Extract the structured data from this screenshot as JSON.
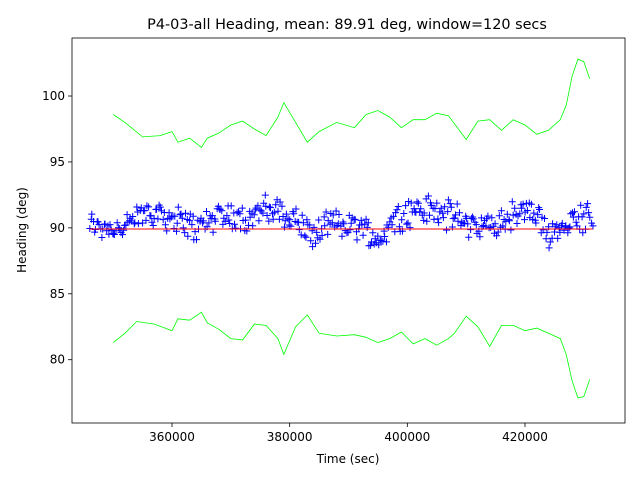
{
  "chart_data": {
    "type": "scatter",
    "title": "P4-03-all Heading, mean: 89.91 deg, window=120 secs",
    "xlabel": "Time (sec)",
    "ylabel": "Heading (deg)",
    "xlim": [
      343000,
      437000
    ],
    "ylim": [
      75.2,
      104.4
    ],
    "x_ticks": [
      360000,
      380000,
      400000,
      420000
    ],
    "x_tick_labels": [
      "360000",
      "380000",
      "400000",
      "420000"
    ],
    "y_ticks": [
      80,
      85,
      90,
      95,
      100
    ],
    "y_tick_labels": [
      "80",
      "85",
      "90",
      "95",
      "100"
    ],
    "grid": false,
    "colors": {
      "points": "#0000ff",
      "mean": "#ff0000",
      "bounds": "#00ff00"
    },
    "series": [
      {
        "role": "points",
        "marker": "+",
        "x_range": [
          346000,
          431500
        ],
        "count": 1000,
        "mean": 89.91,
        "spread_min": 87.6,
        "spread_max": 93.0
      },
      {
        "role": "mean",
        "x": [
          346000,
          431500
        ],
        "values": [
          89.91,
          89.91
        ]
      },
      {
        "role": "upper-bound",
        "x": [
          350000,
          352000,
          355000,
          358000,
          360000,
          361000,
          363000,
          365000,
          366000,
          368000,
          370000,
          372000,
          374000,
          376000,
          378000,
          379000,
          381000,
          383000,
          385000,
          388000,
          391000,
          393000,
          395000,
          397000,
          399000,
          401000,
          403000,
          405000,
          407000,
          408000,
          410000,
          412000,
          414000,
          416000,
          418000,
          420000,
          422000,
          424000,
          426000,
          427000,
          428000,
          429000,
          430000,
          431000
        ],
        "values": [
          98.6,
          98.0,
          96.9,
          97.0,
          97.3,
          96.5,
          96.8,
          96.1,
          96.8,
          97.2,
          97.8,
          98.1,
          97.5,
          97.0,
          98.4,
          99.5,
          98.0,
          96.5,
          97.3,
          98.0,
          97.6,
          98.6,
          98.9,
          98.4,
          97.6,
          98.2,
          98.2,
          98.7,
          98.5,
          97.9,
          96.7,
          98.1,
          98.2,
          97.4,
          98.2,
          97.8,
          97.1,
          97.4,
          98.2,
          99.3,
          101.5,
          102.8,
          102.6,
          101.3
        ]
      },
      {
        "role": "lower-bound",
        "x": [
          350000,
          352000,
          354000,
          357000,
          360000,
          361000,
          363000,
          365000,
          366000,
          368000,
          370000,
          372000,
          374000,
          376000,
          378000,
          379000,
          381000,
          383000,
          385000,
          388000,
          391000,
          393000,
          395000,
          397000,
          399000,
          401000,
          403000,
          405000,
          407000,
          408000,
          410000,
          412000,
          414000,
          416000,
          418000,
          420000,
          422000,
          424000,
          426000,
          427000,
          428000,
          429000,
          430000,
          431000
        ],
        "values": [
          81.3,
          82.0,
          82.9,
          82.7,
          82.2,
          83.1,
          83.0,
          83.6,
          82.8,
          82.3,
          81.6,
          81.5,
          82.7,
          82.6,
          81.6,
          80.4,
          82.5,
          83.4,
          82.0,
          81.8,
          81.9,
          81.7,
          81.3,
          81.6,
          82.1,
          81.2,
          81.6,
          81.1,
          81.6,
          82.0,
          83.3,
          82.5,
          81.0,
          82.6,
          82.6,
          82.2,
          82.4,
          82.0,
          81.6,
          80.4,
          78.4,
          77.1,
          77.2,
          78.5
        ]
      }
    ]
  }
}
